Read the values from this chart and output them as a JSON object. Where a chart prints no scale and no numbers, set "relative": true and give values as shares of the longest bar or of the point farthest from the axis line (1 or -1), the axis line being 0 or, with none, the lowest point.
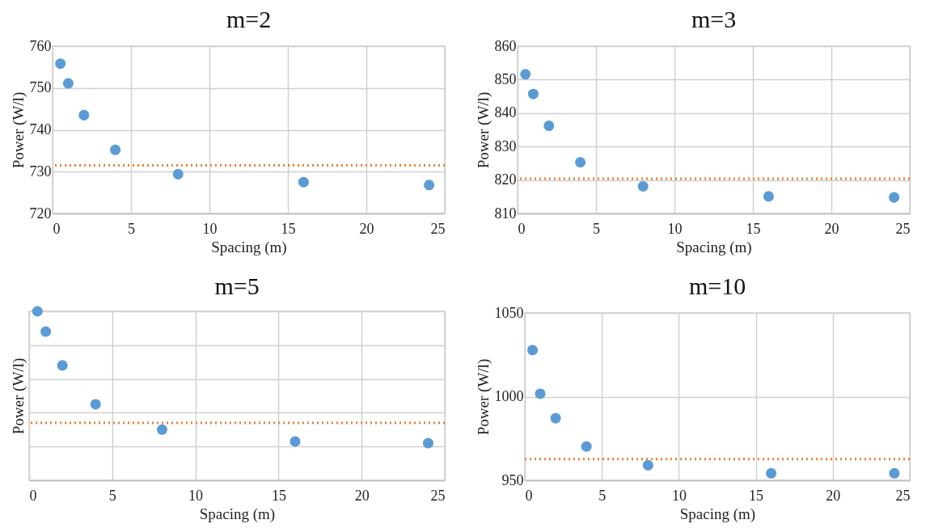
{
  "chart_data": [
    {
      "type": "scatter",
      "title": "m=2",
      "xlabel": "Spacing (m)",
      "ylabel": "Power (W/l)",
      "x": [
        0.5,
        1,
        2,
        4,
        8,
        16,
        24
      ],
      "series": [
        {
          "color": "#5b9bd5",
          "values": [
            755.8,
            751.1,
            743.5,
            735.2,
            729.4,
            727.5,
            726.8
          ]
        }
      ],
      "xlim": [
        0,
        25
      ],
      "xticks": [
        0,
        5,
        10,
        15,
        20,
        25
      ],
      "ylim": [
        720,
        760
      ],
      "yticks": [
        720,
        730,
        740,
        750,
        760
      ],
      "grid": true,
      "marker": "circle",
      "ref_lines": [
        {
          "axis": "y",
          "value": 731.5,
          "color": "#ed7d31",
          "line_style": "dotted"
        }
      ]
    },
    {
      "type": "scatter",
      "title": "m=3",
      "xlabel": "Spacing (m)",
      "ylabel": "Power (W/l)",
      "x": [
        0.5,
        1,
        2,
        4,
        8,
        16,
        24
      ],
      "series": [
        {
          "color": "#5b9bd5",
          "values": [
            851.6,
            845.7,
            836.2,
            825.3,
            818.1,
            815.1,
            814.8
          ]
        }
      ],
      "xlim": [
        0,
        25
      ],
      "xticks": [
        0,
        5,
        10,
        15,
        20,
        25
      ],
      "ylim": [
        810,
        860
      ],
      "yticks": [
        810,
        820,
        830,
        840,
        850,
        860
      ],
      "grid": true,
      "marker": "circle",
      "ref_lines": [
        {
          "axis": "y",
          "value": 820.4,
          "color": "#ed7d31",
          "line_style": "dotted"
        }
      ]
    },
    {
      "type": "scatter",
      "title": "m=5",
      "xlabel": "Spacing (m)",
      "ylabel": "Power (W/l)",
      "x": [
        0.5,
        1,
        2,
        4,
        8,
        16,
        24
      ],
      "series": [
        {
          "color": "#5b9bd5",
          "values": [
            1,
            0.88,
            0.68,
            0.45,
            0.3,
            0.23,
            0.22
          ]
        }
      ],
      "relative": true,
      "xlim": [
        0,
        25
      ],
      "xticks": [
        0,
        5,
        10,
        15,
        20,
        25
      ],
      "grid": true,
      "marker": "circle",
      "ref_lines": [
        {
          "axis": "y",
          "value": 0.34,
          "color": "#ed7d31",
          "line_style": "dotted"
        }
      ]
    },
    {
      "type": "scatter",
      "title": "m=10",
      "xlabel": "Spacing (m)",
      "ylabel": "Power (W/l)",
      "x": [
        0.5,
        1,
        2,
        4,
        8,
        16,
        24
      ],
      "series": [
        {
          "color": "#5b9bd5",
          "values": [
            1027.8,
            1001.7,
            987.1,
            970.2,
            959.0,
            954.2,
            954.2
          ]
        }
      ],
      "xlim": [
        0,
        25
      ],
      "xticks": [
        0,
        5,
        10,
        15,
        20,
        25
      ],
      "ylim": [
        950,
        1050
      ],
      "yticks": [
        950,
        1000,
        1050
      ],
      "grid": true,
      "marker": "circle",
      "ref_lines": [
        {
          "axis": "y",
          "value": 962.7,
          "color": "#ed7d31",
          "line_style": "dotted"
        }
      ]
    }
  ]
}
